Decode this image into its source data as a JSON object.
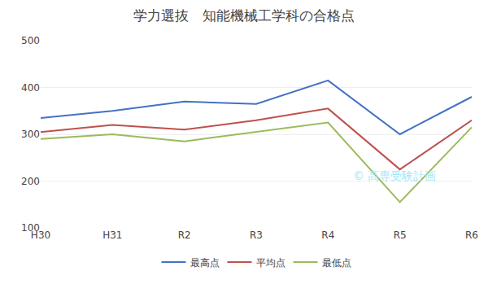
{
  "chart_data": {
    "type": "line",
    "title": "学力選抜　知能機械工学科の合格点",
    "categories": [
      "H30",
      "H31",
      "R2",
      "R3",
      "R4",
      "R5",
      "R6"
    ],
    "series": [
      {
        "name": "最高点",
        "color": "#4472C4",
        "values": [
          335,
          350,
          370,
          365,
          415,
          300,
          380
        ]
      },
      {
        "name": "平均点",
        "color": "#C0504D",
        "values": [
          305,
          320,
          310,
          330,
          355,
          225,
          330
        ]
      },
      {
        "name": "最低点",
        "color": "#9BBB59",
        "values": [
          290,
          300,
          285,
          305,
          325,
          155,
          315
        ]
      }
    ],
    "ylim": [
      100,
      500
    ],
    "yticks": [
      100,
      200,
      300,
      400,
      500
    ],
    "grid": true,
    "legend": "bottom",
    "annotations": [
      {
        "text": "© 高専受験計画",
        "color": "#A0E8F8"
      }
    ]
  }
}
